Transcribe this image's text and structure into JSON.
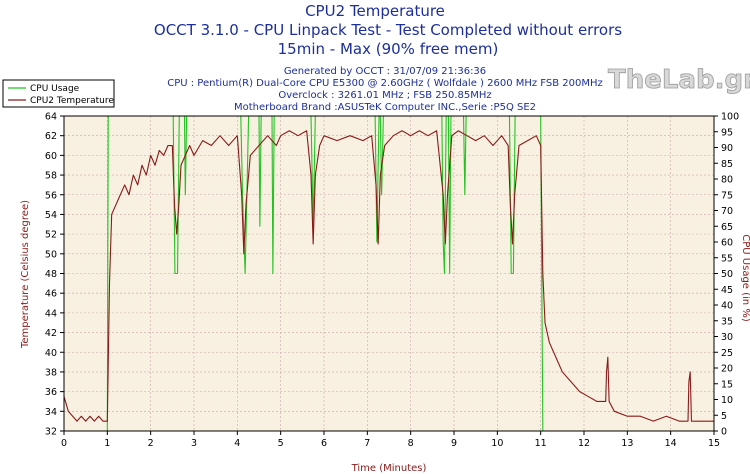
{
  "chart_data": {
    "type": "line",
    "title": "CPU2 Temperature",
    "subtitle_lines": [
      "OCCT 3.1.0 - CPU Linpack Test - Test Completed without errors",
      "15min - Max (90% free mem)"
    ],
    "info_lines": [
      "Generated by OCCT : 31/07/09 21:36:36",
      "CPU : Pentium(R) Dual-Core CPU E5300 @ 2.60GHz ( Wolfdale ) 2600 MHz FSB 200MHz",
      "Overclock : 3261.01 MHz ; FSB 250.85MHz",
      "Motherboard Brand :ASUSTeK Computer INC.,Serie :P5Q SE2"
    ],
    "watermark": "TheLab.gr",
    "xlabel": "Time (Minutes)",
    "ylabel_left": "Temperature (Celsius degree)",
    "ylabel_right": "CPU Usage (in %)",
    "xlim": [
      0,
      15
    ],
    "ylim_left": [
      32,
      64
    ],
    "ylim_right": [
      0,
      100
    ],
    "x_ticks": [
      0,
      1,
      2,
      3,
      4,
      5,
      6,
      7,
      8,
      9,
      10,
      11,
      12,
      13,
      14,
      15
    ],
    "y_left_ticks": [
      32,
      34,
      36,
      38,
      40,
      42,
      44,
      46,
      48,
      50,
      52,
      54,
      56,
      58,
      60,
      62,
      64
    ],
    "y_right_ticks": [
      0,
      5,
      10,
      15,
      20,
      25,
      30,
      35,
      40,
      45,
      50,
      55,
      60,
      65,
      70,
      75,
      80,
      85,
      90,
      95,
      100
    ],
    "grid": true,
    "legend_position": "top-left",
    "series": [
      {
        "name": "CPU Usage",
        "axis": "right",
        "color": "#22c322",
        "points": [
          [
            0,
            0
          ],
          [
            1.0,
            0
          ],
          [
            1.02,
            100
          ],
          [
            2.52,
            100
          ],
          [
            2.56,
            50
          ],
          [
            2.62,
            50
          ],
          [
            2.66,
            100
          ],
          [
            2.78,
            100
          ],
          [
            2.8,
            75
          ],
          [
            2.83,
            100
          ],
          [
            4.08,
            100
          ],
          [
            4.12,
            75
          ],
          [
            4.18,
            50
          ],
          [
            4.22,
            75
          ],
          [
            4.26,
            100
          ],
          [
            4.5,
            100
          ],
          [
            4.52,
            65
          ],
          [
            4.55,
            100
          ],
          [
            4.8,
            100
          ],
          [
            4.82,
            50
          ],
          [
            4.85,
            100
          ],
          [
            5.7,
            100
          ],
          [
            5.75,
            65
          ],
          [
            5.8,
            100
          ],
          [
            7.18,
            100
          ],
          [
            7.22,
            60
          ],
          [
            7.27,
            100
          ],
          [
            7.3,
            100
          ],
          [
            7.33,
            75
          ],
          [
            7.37,
            100
          ],
          [
            8.72,
            100
          ],
          [
            8.75,
            60
          ],
          [
            8.78,
            50
          ],
          [
            8.82,
            100
          ],
          [
            8.87,
            100
          ],
          [
            8.9,
            50
          ],
          [
            8.93,
            100
          ],
          [
            9.22,
            100
          ],
          [
            9.25,
            75
          ],
          [
            9.28,
            100
          ],
          [
            10.28,
            100
          ],
          [
            10.32,
            50
          ],
          [
            10.37,
            50
          ],
          [
            10.41,
            100
          ],
          [
            11.0,
            100
          ],
          [
            11.05,
            0
          ],
          [
            15,
            0
          ]
        ]
      },
      {
        "name": "CPU2 Temperature",
        "axis": "left",
        "color": "#8a1a1a",
        "points": [
          [
            0,
            35.5
          ],
          [
            0.1,
            34
          ],
          [
            0.2,
            33.5
          ],
          [
            0.3,
            33
          ],
          [
            0.4,
            33.5
          ],
          [
            0.5,
            33
          ],
          [
            0.6,
            33.5
          ],
          [
            0.7,
            33
          ],
          [
            0.8,
            33.5
          ],
          [
            0.9,
            33
          ],
          [
            1.0,
            33
          ],
          [
            1.05,
            47
          ],
          [
            1.1,
            54
          ],
          [
            1.2,
            55
          ],
          [
            1.3,
            56
          ],
          [
            1.4,
            57
          ],
          [
            1.5,
            56
          ],
          [
            1.6,
            58
          ],
          [
            1.7,
            57
          ],
          [
            1.8,
            59
          ],
          [
            1.9,
            58
          ],
          [
            2.0,
            60
          ],
          [
            2.1,
            59
          ],
          [
            2.2,
            60.5
          ],
          [
            2.3,
            60
          ],
          [
            2.4,
            61
          ],
          [
            2.5,
            61
          ],
          [
            2.55,
            55
          ],
          [
            2.6,
            52
          ],
          [
            2.65,
            55
          ],
          [
            2.7,
            59
          ],
          [
            2.8,
            60
          ],
          [
            2.9,
            61
          ],
          [
            3.0,
            60
          ],
          [
            3.2,
            61.5
          ],
          [
            3.4,
            61
          ],
          [
            3.6,
            62
          ],
          [
            3.8,
            61
          ],
          [
            4.0,
            62
          ],
          [
            4.1,
            56
          ],
          [
            4.15,
            50
          ],
          [
            4.2,
            55
          ],
          [
            4.3,
            60
          ],
          [
            4.5,
            61
          ],
          [
            4.7,
            62
          ],
          [
            4.9,
            61
          ],
          [
            5.0,
            62
          ],
          [
            5.2,
            62.5
          ],
          [
            5.4,
            62
          ],
          [
            5.6,
            62.5
          ],
          [
            5.7,
            58
          ],
          [
            5.75,
            51
          ],
          [
            5.8,
            58
          ],
          [
            5.9,
            61
          ],
          [
            6.0,
            62
          ],
          [
            6.3,
            61.5
          ],
          [
            6.6,
            62
          ],
          [
            6.9,
            61.5
          ],
          [
            7.1,
            62
          ],
          [
            7.2,
            57
          ],
          [
            7.25,
            51
          ],
          [
            7.3,
            58
          ],
          [
            7.4,
            61
          ],
          [
            7.6,
            62
          ],
          [
            7.8,
            62.5
          ],
          [
            8.0,
            62
          ],
          [
            8.2,
            62.5
          ],
          [
            8.4,
            62
          ],
          [
            8.6,
            62.5
          ],
          [
            8.75,
            56
          ],
          [
            8.8,
            51
          ],
          [
            8.85,
            56
          ],
          [
            8.95,
            62
          ],
          [
            9.1,
            62.5
          ],
          [
            9.3,
            62
          ],
          [
            9.5,
            61.5
          ],
          [
            9.7,
            62
          ],
          [
            9.9,
            61
          ],
          [
            10.1,
            62
          ],
          [
            10.25,
            61
          ],
          [
            10.3,
            55
          ],
          [
            10.35,
            51
          ],
          [
            10.4,
            56
          ],
          [
            10.5,
            61
          ],
          [
            10.7,
            61.5
          ],
          [
            10.9,
            62
          ],
          [
            11.0,
            61
          ],
          [
            11.05,
            48
          ],
          [
            11.1,
            43
          ],
          [
            11.2,
            41
          ],
          [
            11.3,
            40
          ],
          [
            11.5,
            38
          ],
          [
            11.7,
            37
          ],
          [
            11.9,
            36
          ],
          [
            12.1,
            35.5
          ],
          [
            12.3,
            35
          ],
          [
            12.5,
            35
          ],
          [
            12.52,
            38
          ],
          [
            12.55,
            39.5
          ],
          [
            12.58,
            35
          ],
          [
            12.7,
            34
          ],
          [
            13.0,
            33.5
          ],
          [
            13.3,
            33.5
          ],
          [
            13.6,
            33
          ],
          [
            13.9,
            33.5
          ],
          [
            14.2,
            33
          ],
          [
            14.4,
            33
          ],
          [
            14.42,
            37
          ],
          [
            14.45,
            38
          ],
          [
            14.48,
            33
          ],
          [
            14.7,
            33
          ],
          [
            15,
            33
          ]
        ]
      }
    ]
  },
  "colors": {
    "plot_background": "#f8f1e1",
    "grid": "#c8a8a8",
    "title": "#1c2f9c",
    "axis_label": "#8a1a1a"
  }
}
